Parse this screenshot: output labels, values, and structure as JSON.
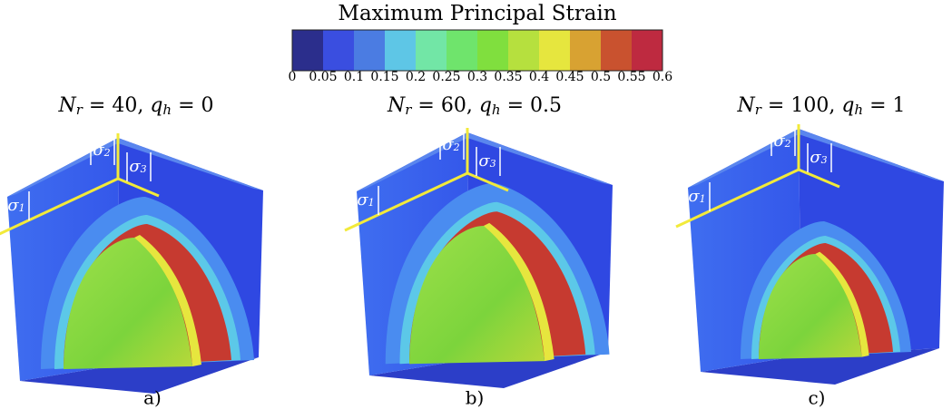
{
  "colorbar": {
    "title": "Maximum Principal Strain",
    "ticks": [
      0,
      0.05,
      0.1,
      0.15,
      0.2,
      0.25,
      0.3,
      0.35,
      0.4,
      0.45,
      0.5,
      0.55,
      0.6
    ],
    "colors": [
      "#2b2e8c",
      "#3a4ee0",
      "#4b7ce2",
      "#5ec6e6",
      "#72e6a6",
      "#6fe46c",
      "#80df3e",
      "#b6e03e",
      "#e6e63e",
      "#d8a232",
      "#c9522f",
      "#be2a40"
    ]
  },
  "stress_axes": [
    {
      "symbol": "σ",
      "sub": "1"
    },
    {
      "symbol": "σ",
      "sub": "2"
    },
    {
      "symbol": "σ",
      "sub": "3"
    }
  ],
  "panels": [
    {
      "label": "a)",
      "title": [
        {
          "text": "N",
          "style": "italic"
        },
        {
          "text": "r",
          "style": "sub"
        },
        {
          "text": " = 40, ",
          "style": "normal"
        },
        {
          "text": "q",
          "style": "italic"
        },
        {
          "text": "h",
          "style": "sub"
        },
        {
          "text": " = 0",
          "style": "normal"
        }
      ]
    },
    {
      "label": "b)",
      "title": [
        {
          "text": "N",
          "style": "italic"
        },
        {
          "text": "r",
          "style": "sub"
        },
        {
          "text": " = 60, ",
          "style": "normal"
        },
        {
          "text": "q",
          "style": "italic"
        },
        {
          "text": "h",
          "style": "sub"
        },
        {
          "text": " = 0.5",
          "style": "normal"
        }
      ]
    },
    {
      "label": "c)",
      "title": [
        {
          "text": "N",
          "style": "italic"
        },
        {
          "text": "r",
          "style": "sub"
        },
        {
          "text": " = 100, ",
          "style": "normal"
        },
        {
          "text": "q",
          "style": "italic"
        },
        {
          "text": "h",
          "style": "sub"
        },
        {
          "text": " = 1",
          "style": "normal"
        }
      ]
    }
  ]
}
